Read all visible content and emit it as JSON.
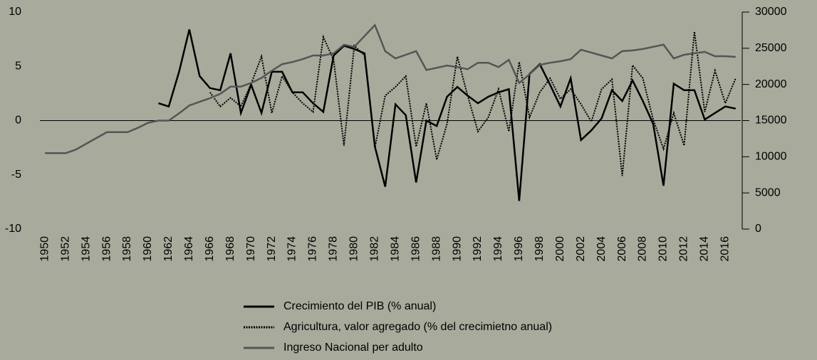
{
  "chart_data": {
    "type": "line",
    "x": [
      1950,
      1951,
      1952,
      1953,
      1954,
      1955,
      1956,
      1957,
      1958,
      1959,
      1960,
      1961,
      1962,
      1963,
      1964,
      1965,
      1966,
      1967,
      1968,
      1969,
      1970,
      1971,
      1972,
      1973,
      1974,
      1975,
      1976,
      1977,
      1978,
      1979,
      1980,
      1981,
      1982,
      1983,
      1984,
      1985,
      1986,
      1987,
      1988,
      1989,
      1990,
      1991,
      1992,
      1993,
      1994,
      1995,
      1996,
      1997,
      1998,
      1999,
      2000,
      2001,
      2002,
      2003,
      2004,
      2005,
      2006,
      2007,
      2008,
      2009,
      2010,
      2011,
      2012,
      2013,
      2014,
      2015,
      2016,
      2017
    ],
    "xlim": [
      1949.5,
      2017.5
    ],
    "xticks": [
      1950,
      1952,
      1954,
      1956,
      1958,
      1960,
      1962,
      1964,
      1966,
      1968,
      1970,
      1972,
      1974,
      1976,
      1978,
      1980,
      1982,
      1984,
      1986,
      1988,
      1990,
      1992,
      1994,
      1996,
      1998,
      2000,
      2002,
      2004,
      2006,
      2008,
      2010,
      2012,
      2014,
      2016
    ],
    "ylim": [
      -10,
      10
    ],
    "yticks": [
      -10,
      -5,
      0,
      5,
      10
    ],
    "y2lim": [
      0,
      30000
    ],
    "y2ticks": [
      0,
      5000,
      10000,
      15000,
      20000,
      25000,
      30000
    ],
    "series": [
      {
        "name": "Crecimiento del PIB (% anual)",
        "color": "#000000",
        "dash": "solid",
        "values": [
          null,
          null,
          null,
          null,
          null,
          null,
          null,
          null,
          null,
          null,
          null,
          1.6,
          1.3,
          4.5,
          8.4,
          4.1,
          3.0,
          2.8,
          6.2,
          0.7,
          3.3,
          0.7,
          4.5,
          4.5,
          2.6,
          2.6,
          1.6,
          0.8,
          6.0,
          6.9,
          6.6,
          6.2,
          -2.4,
          -6.1,
          1.5,
          0.5,
          -5.7,
          0,
          -0.5,
          2.2,
          3.1,
          2.3,
          1.6,
          2.2,
          2.6,
          2.9,
          -7.4,
          4.3,
          5.2,
          3.3,
          1.3,
          3.9,
          -1.8,
          -0.9,
          0.2,
          2.8,
          1.8,
          3.7,
          1.8,
          -0.3,
          -6.0,
          3.4,
          2.8,
          2.8,
          0.1,
          0.7,
          1.3,
          1.1
        ]
      },
      {
        "name": "Agricultura, valor agregado (% del crecimietno anual)",
        "color": "#000000",
        "dash": "dotted",
        "values": [
          null,
          null,
          null,
          null,
          null,
          null,
          null,
          null,
          null,
          null,
          null,
          null,
          null,
          null,
          null,
          null,
          2.6,
          1.3,
          2.1,
          1.3,
          3.4,
          5.9,
          0.7,
          4.1,
          2.6,
          1.6,
          0.8,
          7.7,
          5.6,
          -2.3,
          6.9,
          6.0,
          -2.5,
          2.3,
          3.1,
          4.1,
          -2.4,
          1.6,
          -3.6,
          -0.3,
          5.9,
          2.3,
          -1.0,
          0.3,
          2.9,
          -1.0,
          5.4,
          0.3,
          2.6,
          3.9,
          2.0,
          2.9,
          1.5,
          -0.1,
          2.9,
          3.8,
          -5.1,
          5.1,
          3.9,
          0.1,
          -2.6,
          0.7,
          -2.3,
          8.2,
          0.8,
          4.6,
          1.6,
          3.9
        ]
      },
      {
        "name": "Ingreso Nacional per adulto",
        "color": "#555555",
        "dash": "solid",
        "axis": "y2",
        "values": [
          10500,
          10500,
          10500,
          11000,
          11800,
          12600,
          13400,
          13400,
          13400,
          14000,
          14700,
          15000,
          15000,
          16000,
          17100,
          17600,
          18100,
          18700,
          19700,
          19700,
          20200,
          20900,
          21900,
          22800,
          23100,
          23500,
          24000,
          24000,
          24300,
          25500,
          25200,
          26700,
          28200,
          24600,
          23600,
          24100,
          24600,
          22000,
          22300,
          22600,
          22400,
          22100,
          23000,
          23000,
          22400,
          23400,
          20200,
          21400,
          22700,
          23000,
          23200,
          23500,
          24800,
          24400,
          24000,
          23600,
          24600,
          24700,
          24900,
          25200,
          25500,
          23600,
          24100,
          24300,
          24500,
          23900,
          23900,
          23800
        ]
      }
    ]
  }
}
